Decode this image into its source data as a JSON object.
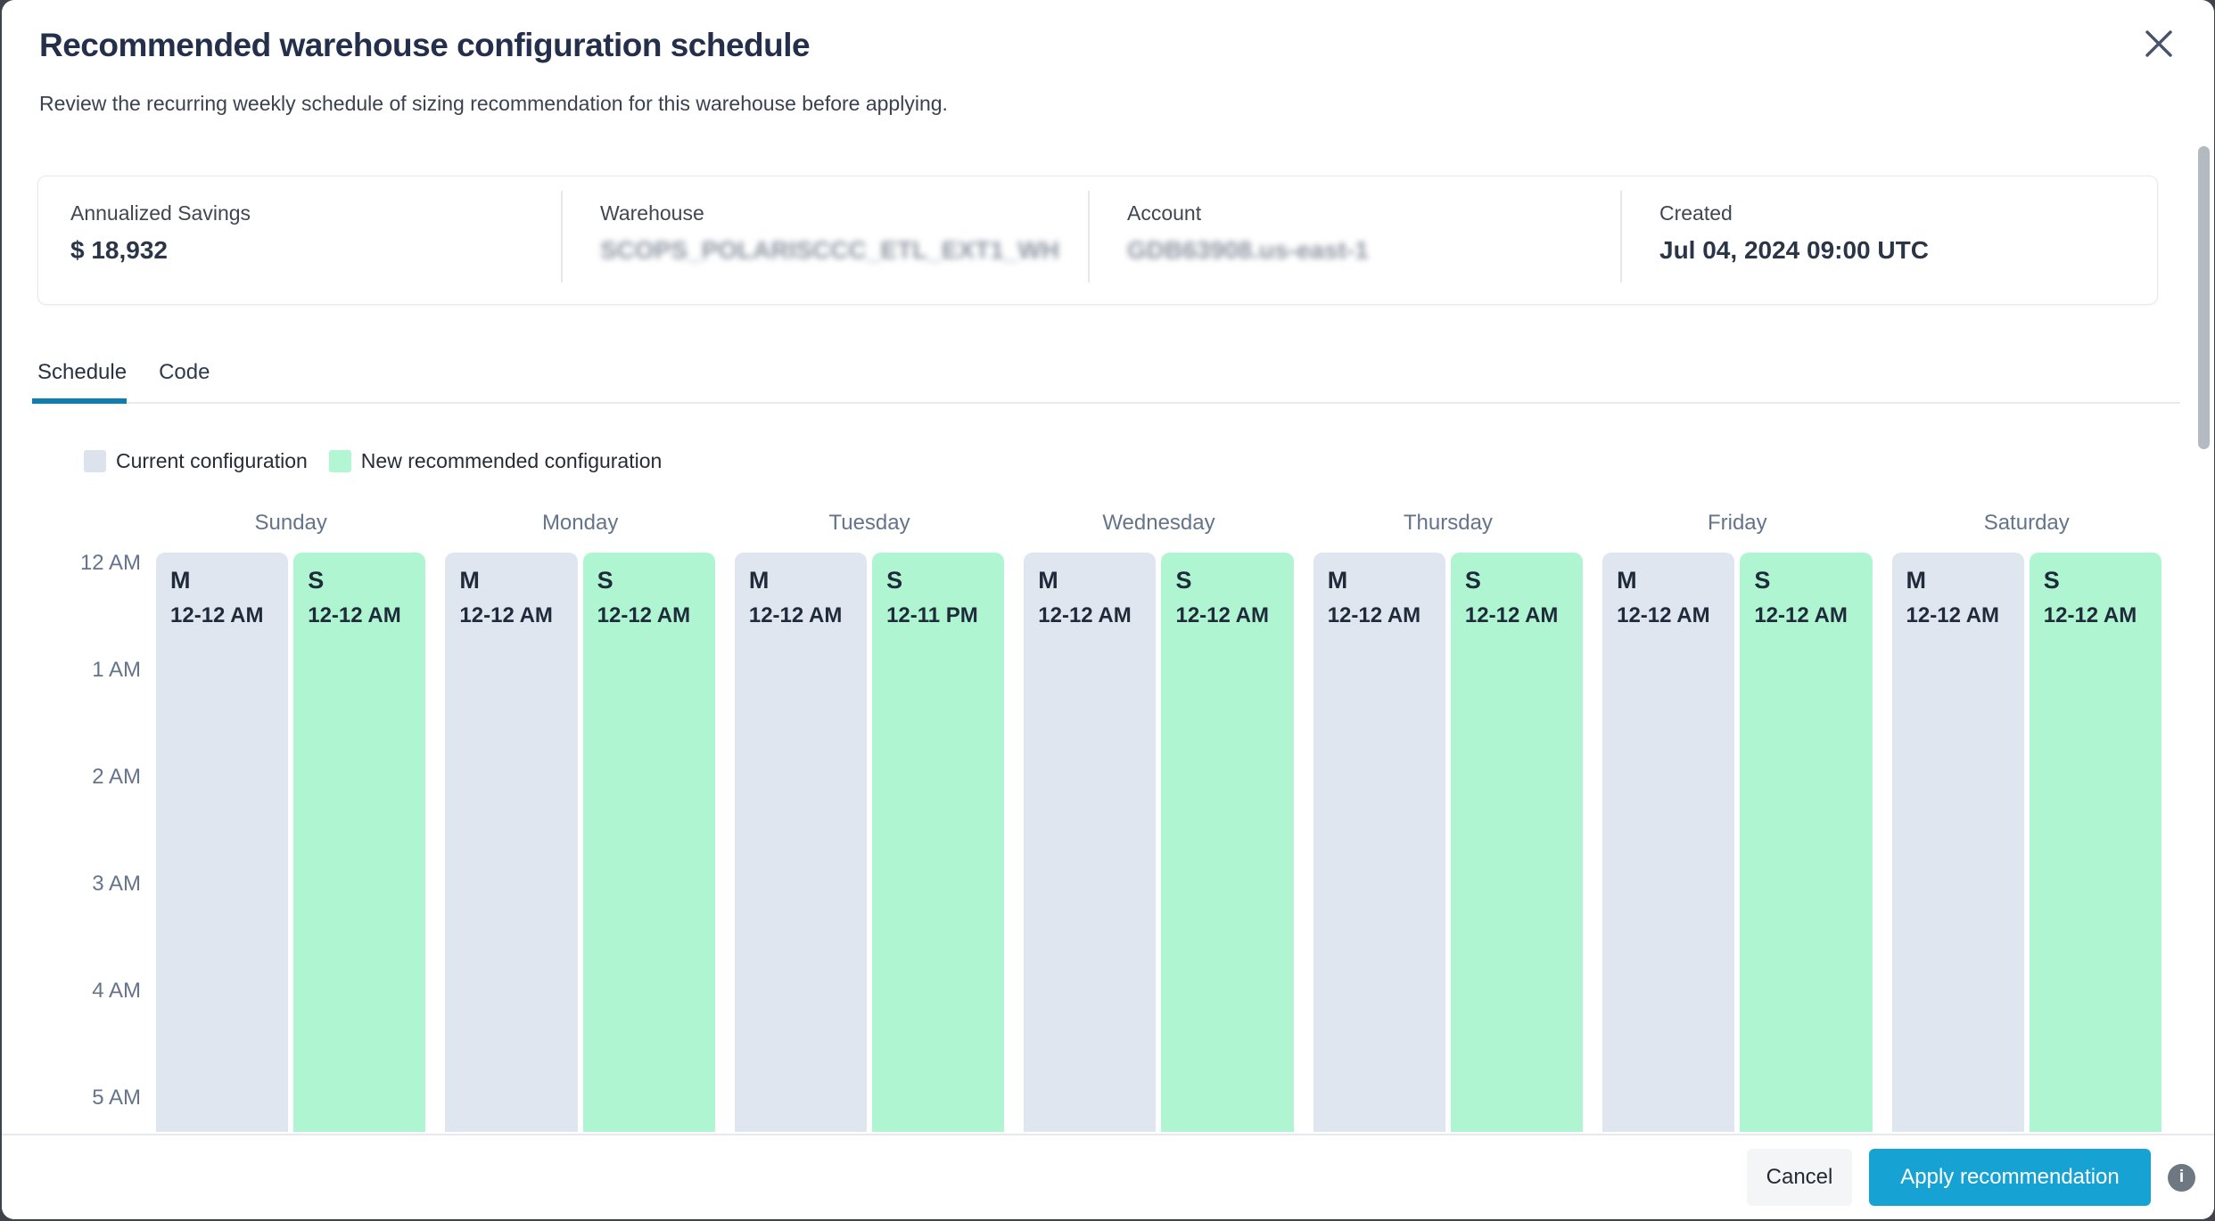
{
  "dialog": {
    "title": "Recommended warehouse configuration schedule",
    "subtitle": "Review the recurring weekly schedule of sizing recommendation for this warehouse before applying."
  },
  "summary": {
    "fields": [
      {
        "label": "Annualized Savings",
        "value": "$ 18,932",
        "blurred": false
      },
      {
        "label": "Warehouse",
        "value": "SCOPS_POLARISCCC_ETL_EXT1_WH",
        "blurred": true
      },
      {
        "label": "Account",
        "value": "GDB63908.us-east-1",
        "blurred": true
      },
      {
        "label": "Created",
        "value": "Jul 04, 2024 09:00 UTC",
        "blurred": false
      }
    ]
  },
  "tabs": {
    "items": [
      {
        "label": "Schedule",
        "active": true
      },
      {
        "label": "Code",
        "active": false
      }
    ]
  },
  "legend": {
    "items": [
      {
        "label": "Current configuration",
        "kind": "current"
      },
      {
        "label": "New recommended configuration",
        "kind": "recommended"
      }
    ]
  },
  "schedule": {
    "hours": [
      "12 AM",
      "1 AM",
      "2 AM",
      "3 AM",
      "4 AM",
      "5 AM"
    ],
    "days": [
      {
        "name": "Sunday",
        "current": {
          "size": "M",
          "time": "12-12 AM"
        },
        "recommended": {
          "size": "S",
          "time": "12-12 AM"
        }
      },
      {
        "name": "Monday",
        "current": {
          "size": "M",
          "time": "12-12 AM"
        },
        "recommended": {
          "size": "S",
          "time": "12-12 AM"
        }
      },
      {
        "name": "Tuesday",
        "current": {
          "size": "M",
          "time": "12-12 AM"
        },
        "recommended": {
          "size": "S",
          "time": "12-11 PM"
        }
      },
      {
        "name": "Wednesday",
        "current": {
          "size": "M",
          "time": "12-12 AM"
        },
        "recommended": {
          "size": "S",
          "time": "12-12 AM"
        }
      },
      {
        "name": "Thursday",
        "current": {
          "size": "M",
          "time": "12-12 AM"
        },
        "recommended": {
          "size": "S",
          "time": "12-12 AM"
        }
      },
      {
        "name": "Friday",
        "current": {
          "size": "M",
          "time": "12-12 AM"
        },
        "recommended": {
          "size": "S",
          "time": "12-12 AM"
        }
      },
      {
        "name": "Saturday",
        "current": {
          "size": "M",
          "time": "12-12 AM"
        },
        "recommended": {
          "size": "S",
          "time": "12-12 AM"
        }
      }
    ]
  },
  "footer": {
    "cancel_label": "Cancel",
    "apply_label": "Apply recommendation",
    "info_icon": "i"
  },
  "colors": {
    "current_block": "#e0e6ef",
    "recommended_block": "#aff5d1",
    "tab_accent": "#0e7db0",
    "apply_button": "#16a3d4",
    "title_navy": "#232f4b"
  }
}
